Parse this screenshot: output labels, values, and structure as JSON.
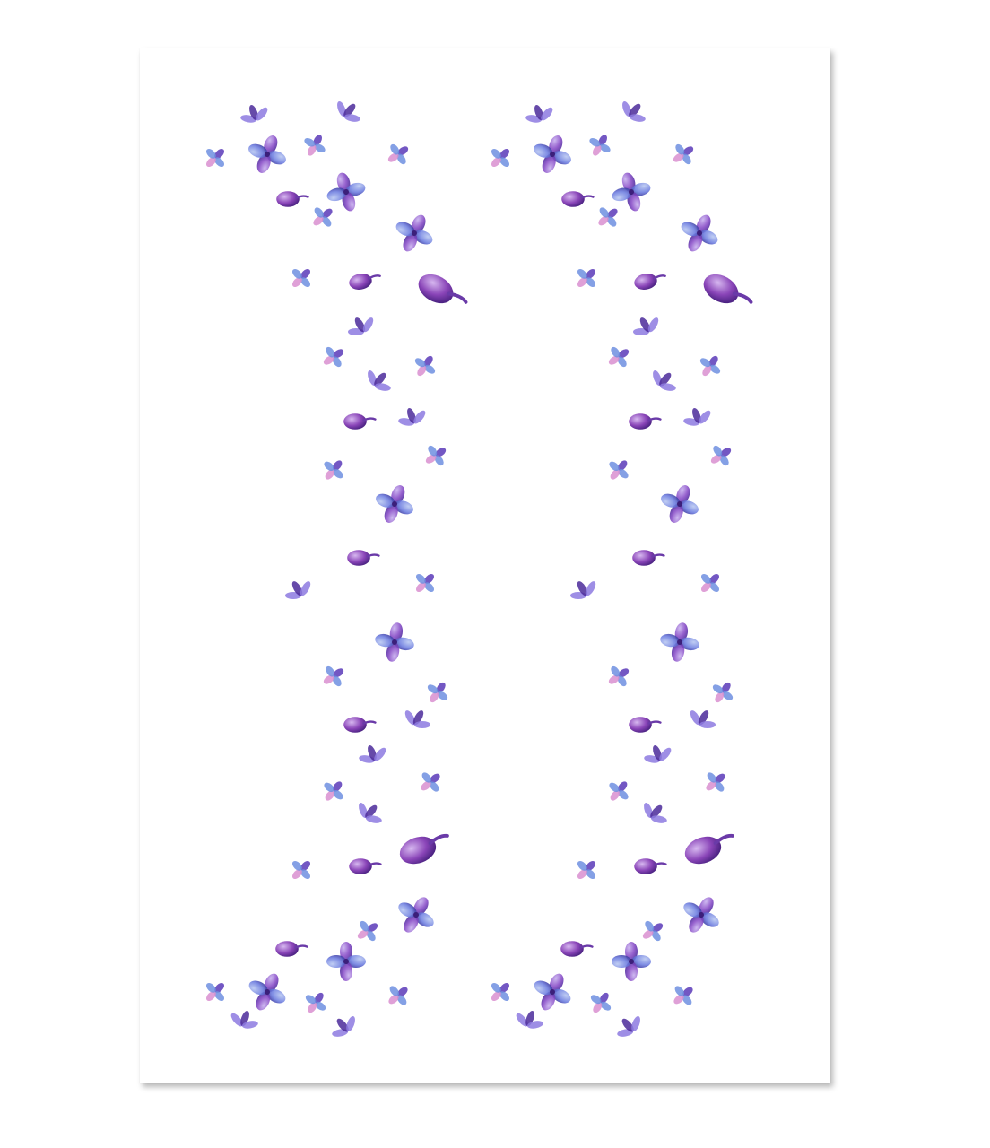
{
  "image": {
    "subject": "lilac-petal-print",
    "colors": {
      "background": "#ffffff",
      "card": "#ffffff",
      "petal_light": "#a98be0",
      "petal_mid": "#8a4fc8",
      "petal_dark": "#4b2a9a",
      "petal_blue": "#6f8fe0",
      "petal_pink": "#d98fd0",
      "bud": "#7a3fb0"
    }
  }
}
